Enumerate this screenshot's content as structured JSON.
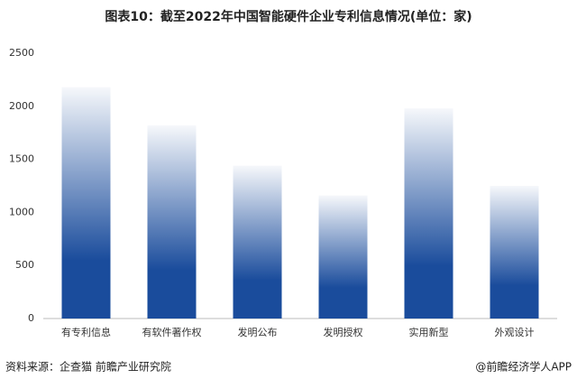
{
  "chart_data": {
    "type": "bar",
    "title": "图表10：截至2022年中国智能硬件企业专利信息情况(单位：家)",
    "categories": [
      "有专利信息",
      "有软件著作权",
      "发明公布",
      "发明授权",
      "实用新型",
      "外观设计"
    ],
    "values": [
      2180,
      1820,
      1440,
      1160,
      1980,
      1250
    ],
    "color": "#1a4c9c",
    "ylim": [
      0,
      2500
    ],
    "yticks": [
      0,
      500,
      1000,
      1500,
      2000,
      2500
    ],
    "grid": false
  },
  "footer": {
    "source": "资料来源：企查猫 前瞻产业研究院",
    "credit": "@前瞻经济学人APP"
  }
}
